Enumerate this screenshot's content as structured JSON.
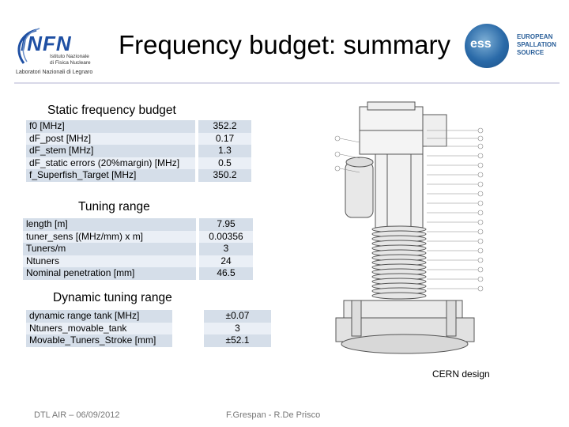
{
  "header": {
    "title": "Frequency budget: summary",
    "infn_word": "INFN",
    "infn_sub": "Istituto Nazionale\ndi Fisica Nucleare",
    "infn_lab": "Laboratori Nazionali di Legnaro",
    "ess_letters": "ess",
    "ess_text": "EUROPEAN\nSPALLATION\nSOURCE"
  },
  "static": {
    "title": "Static frequency budget",
    "rows": [
      {
        "label": "f0 [MHz]",
        "value": "352.2"
      },
      {
        "label": "dF_post [MHz]",
        "value": "0.17"
      },
      {
        "label": "dF_stem [MHz]",
        "value": "1.3"
      },
      {
        "label": "dF_static errors (20%margin) [MHz]",
        "value": "0.5"
      },
      {
        "label": "f_Superfish_Target [MHz]",
        "value": "350.2"
      }
    ]
  },
  "tuning": {
    "title": "Tuning range",
    "rows": [
      {
        "label": "length [m]",
        "value": "7.95"
      },
      {
        "label": "tuner_sens [(MHz/mm) x m]",
        "value": "0.00356"
      },
      {
        "label": "Tuners/m",
        "value": "3"
      },
      {
        "label": "Ntuners",
        "value": "24"
      },
      {
        "label": "Nominal penetration [mm]",
        "value": "46.5"
      }
    ]
  },
  "dynamic": {
    "title": "Dynamic tuning range",
    "rows": [
      {
        "label": "dynamic range tank [MHz]",
        "value": "±0.07"
      },
      {
        "label": "Ntuners_movable_tank",
        "value": "3"
      },
      {
        "label": "Movable_Tuners_Stroke [mm]",
        "value": "±52.1"
      }
    ]
  },
  "drawing_caption": "CERN design",
  "footer": {
    "left": "DTL AIR – 06/09/2012",
    "center": "F.Grespan - R.De Prisco"
  }
}
